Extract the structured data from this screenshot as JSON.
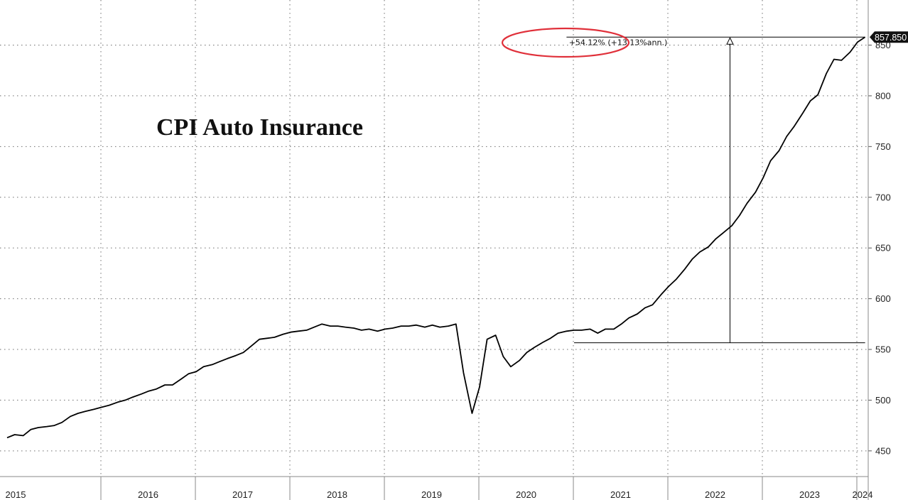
{
  "chart_data": {
    "type": "line",
    "title": "CPI Auto Insurance",
    "xlabel": "",
    "ylabel": "",
    "ylim": [
      420,
      895
    ],
    "xlim": [
      2015.0,
      2024.38
    ],
    "y_ticks": [
      450,
      500,
      550,
      600,
      650,
      700,
      750,
      800,
      850
    ],
    "x_ticks": [
      "2015",
      "2016",
      "2017",
      "2018",
      "2019",
      "2020",
      "2021",
      "2022",
      "2023",
      "2024"
    ],
    "grid": true,
    "last_value_label": "857.850",
    "series": [
      {
        "values": [
          [
            2015.0,
            463
          ],
          [
            2015.08,
            466
          ],
          [
            2015.17,
            465
          ],
          [
            2015.25,
            471
          ],
          [
            2015.33,
            473
          ],
          [
            2015.42,
            474
          ],
          [
            2015.5,
            475
          ],
          [
            2015.58,
            478
          ],
          [
            2015.67,
            484
          ],
          [
            2015.75,
            487
          ],
          [
            2015.83,
            489
          ],
          [
            2015.92,
            491
          ],
          [
            2016.0,
            493
          ],
          [
            2016.08,
            495
          ],
          [
            2016.17,
            498
          ],
          [
            2016.25,
            500
          ],
          [
            2016.33,
            503
          ],
          [
            2016.42,
            506
          ],
          [
            2016.5,
            509
          ],
          [
            2016.58,
            511
          ],
          [
            2016.67,
            515
          ],
          [
            2016.75,
            515
          ],
          [
            2016.83,
            520
          ],
          [
            2016.92,
            526
          ],
          [
            2017.0,
            528
          ],
          [
            2017.08,
            533
          ],
          [
            2017.17,
            535
          ],
          [
            2017.25,
            538
          ],
          [
            2017.33,
            541
          ],
          [
            2017.42,
            544
          ],
          [
            2017.5,
            547
          ],
          [
            2017.58,
            553
          ],
          [
            2017.67,
            560
          ],
          [
            2017.75,
            561
          ],
          [
            2017.83,
            562
          ],
          [
            2017.92,
            565
          ],
          [
            2018.0,
            567
          ],
          [
            2018.08,
            568
          ],
          [
            2018.17,
            569
          ],
          [
            2018.25,
            572
          ],
          [
            2018.33,
            575
          ],
          [
            2018.42,
            573
          ],
          [
            2018.5,
            573
          ],
          [
            2018.58,
            572
          ],
          [
            2018.67,
            571
          ],
          [
            2018.75,
            569
          ],
          [
            2018.83,
            570
          ],
          [
            2018.92,
            568
          ],
          [
            2019.0,
            570
          ],
          [
            2019.08,
            571
          ],
          [
            2019.17,
            573
          ],
          [
            2019.25,
            573
          ],
          [
            2019.33,
            574
          ],
          [
            2019.42,
            572
          ],
          [
            2019.5,
            574
          ],
          [
            2019.58,
            572
          ],
          [
            2019.67,
            573
          ],
          [
            2019.75,
            575
          ],
          [
            2019.83,
            527
          ],
          [
            2019.92,
            487
          ],
          [
            2020.0,
            513
          ],
          [
            2020.08,
            560
          ],
          [
            2020.17,
            564
          ],
          [
            2020.25,
            543
          ],
          [
            2020.33,
            533
          ],
          [
            2020.42,
            539
          ],
          [
            2020.5,
            547
          ],
          [
            2020.58,
            552
          ],
          [
            2020.67,
            557
          ],
          [
            2020.75,
            561
          ],
          [
            2020.83,
            566
          ],
          [
            2020.92,
            568
          ],
          [
            2021.0,
            569
          ],
          [
            2021.08,
            569
          ],
          [
            2021.17,
            570
          ],
          [
            2021.25,
            566
          ],
          [
            2021.33,
            570
          ],
          [
            2021.42,
            570
          ],
          [
            2021.5,
            575
          ],
          [
            2021.58,
            581
          ],
          [
            2021.67,
            585
          ],
          [
            2021.75,
            591
          ],
          [
            2021.83,
            594
          ],
          [
            2021.92,
            604
          ],
          [
            2022.0,
            612
          ],
          [
            2022.08,
            619
          ],
          [
            2022.17,
            629
          ],
          [
            2022.25,
            639
          ],
          [
            2022.33,
            646
          ],
          [
            2022.42,
            651
          ],
          [
            2022.5,
            659
          ],
          [
            2022.58,
            665
          ],
          [
            2022.67,
            672
          ],
          [
            2022.75,
            682
          ],
          [
            2022.83,
            694
          ],
          [
            2022.92,
            705
          ],
          [
            2023.0,
            719
          ],
          [
            2023.08,
            736
          ],
          [
            2023.17,
            746
          ],
          [
            2023.25,
            760
          ],
          [
            2023.33,
            770
          ],
          [
            2023.42,
            783
          ],
          [
            2023.5,
            795
          ],
          [
            2023.58,
            801
          ],
          [
            2023.67,
            822
          ],
          [
            2023.75,
            836
          ],
          [
            2023.83,
            835
          ],
          [
            2023.92,
            843
          ],
          [
            2024.0,
            853
          ],
          [
            2024.08,
            857.85
          ]
        ]
      }
    ],
    "annotation": {
      "text": "+54.12% (+13.13%ann.)",
      "base_value": 556.6,
      "top_value": 857.85,
      "start_x": 2021.0,
      "arrow_x": 2022.65,
      "end_x": 2024.08
    }
  },
  "colors": {
    "line": "#000000",
    "grid": "#6e6e6e",
    "highlight_ellipse": "#e0303a",
    "badge": "#111111",
    "background": "#ffffff"
  }
}
